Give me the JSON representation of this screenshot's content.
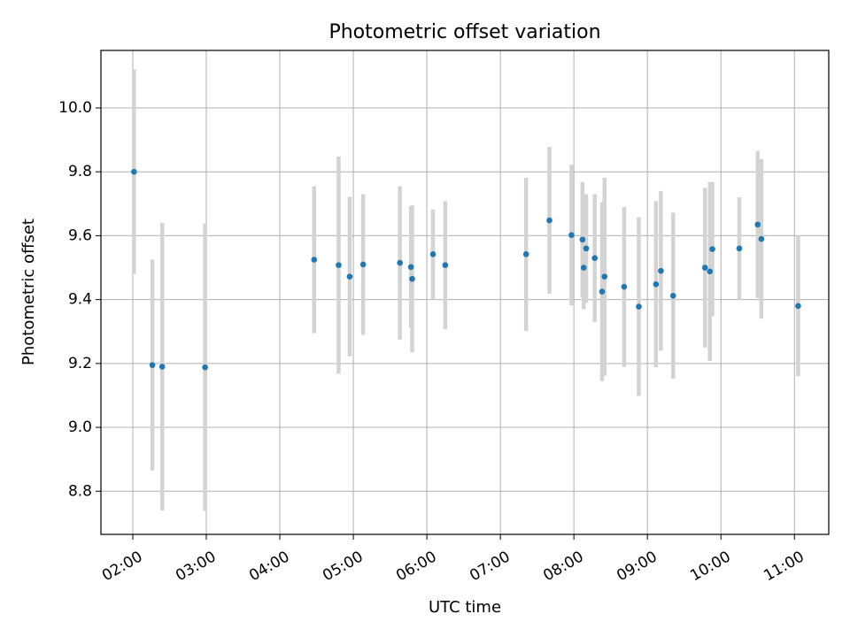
{
  "chart_data": {
    "type": "scatter",
    "title": "Photometric offset variation",
    "xlabel": "UTC time",
    "ylabel": "Photometric offset",
    "x_ticks": [
      "02:00",
      "03:00",
      "04:00",
      "05:00",
      "06:00",
      "07:00",
      "08:00",
      "09:00",
      "10:00",
      "11:00"
    ],
    "y_ticks": [
      "8.8",
      "9.0",
      "9.2",
      "9.4",
      "9.6",
      "9.8",
      "10.0"
    ],
    "xlim": [
      "01:34",
      "11:28"
    ],
    "ylim": [
      8.665,
      10.18
    ],
    "grid": true,
    "colors": {
      "point": "#1f77b4",
      "errorbar": "#d3d3d3",
      "grid": "#b0b0b0"
    },
    "series": [
      {
        "x": [
          "02:01",
          "02:16",
          "02:24",
          "02:59",
          "04:28",
          "04:48",
          "04:57",
          "05:08",
          "05:38",
          "05:47",
          "05:48",
          "06:05",
          "06:15",
          "07:21",
          "07:40",
          "07:58",
          "08:07",
          "08:08",
          "08:10",
          "08:17",
          "08:23",
          "08:25",
          "08:41",
          "08:53",
          "09:07",
          "09:11",
          "09:21",
          "09:47",
          "09:51",
          "09:53",
          "10:15",
          "10:30",
          "10:33",
          "11:03"
        ],
        "y": [
          9.8,
          9.195,
          9.19,
          9.188,
          9.525,
          9.508,
          9.472,
          9.51,
          9.515,
          9.502,
          9.465,
          9.542,
          9.508,
          9.542,
          9.648,
          9.602,
          9.588,
          9.5,
          9.56,
          9.53,
          9.425,
          9.472,
          9.44,
          9.378,
          9.448,
          9.49,
          9.412,
          9.5,
          9.488,
          9.558,
          9.56,
          9.635,
          9.59,
          9.38
        ],
        "yerr": [
          0.32,
          0.33,
          0.45,
          0.45,
          0.23,
          0.34,
          0.25,
          0.22,
          0.24,
          0.19,
          0.23,
          0.14,
          0.2,
          0.24,
          0.23,
          0.22,
          0.18,
          0.13,
          0.17,
          0.2,
          0.28,
          0.31,
          0.25,
          0.28,
          0.26,
          0.25,
          0.26,
          0.25,
          0.28,
          0.21,
          0.16,
          0.23,
          0.25,
          0.22
        ]
      }
    ]
  }
}
